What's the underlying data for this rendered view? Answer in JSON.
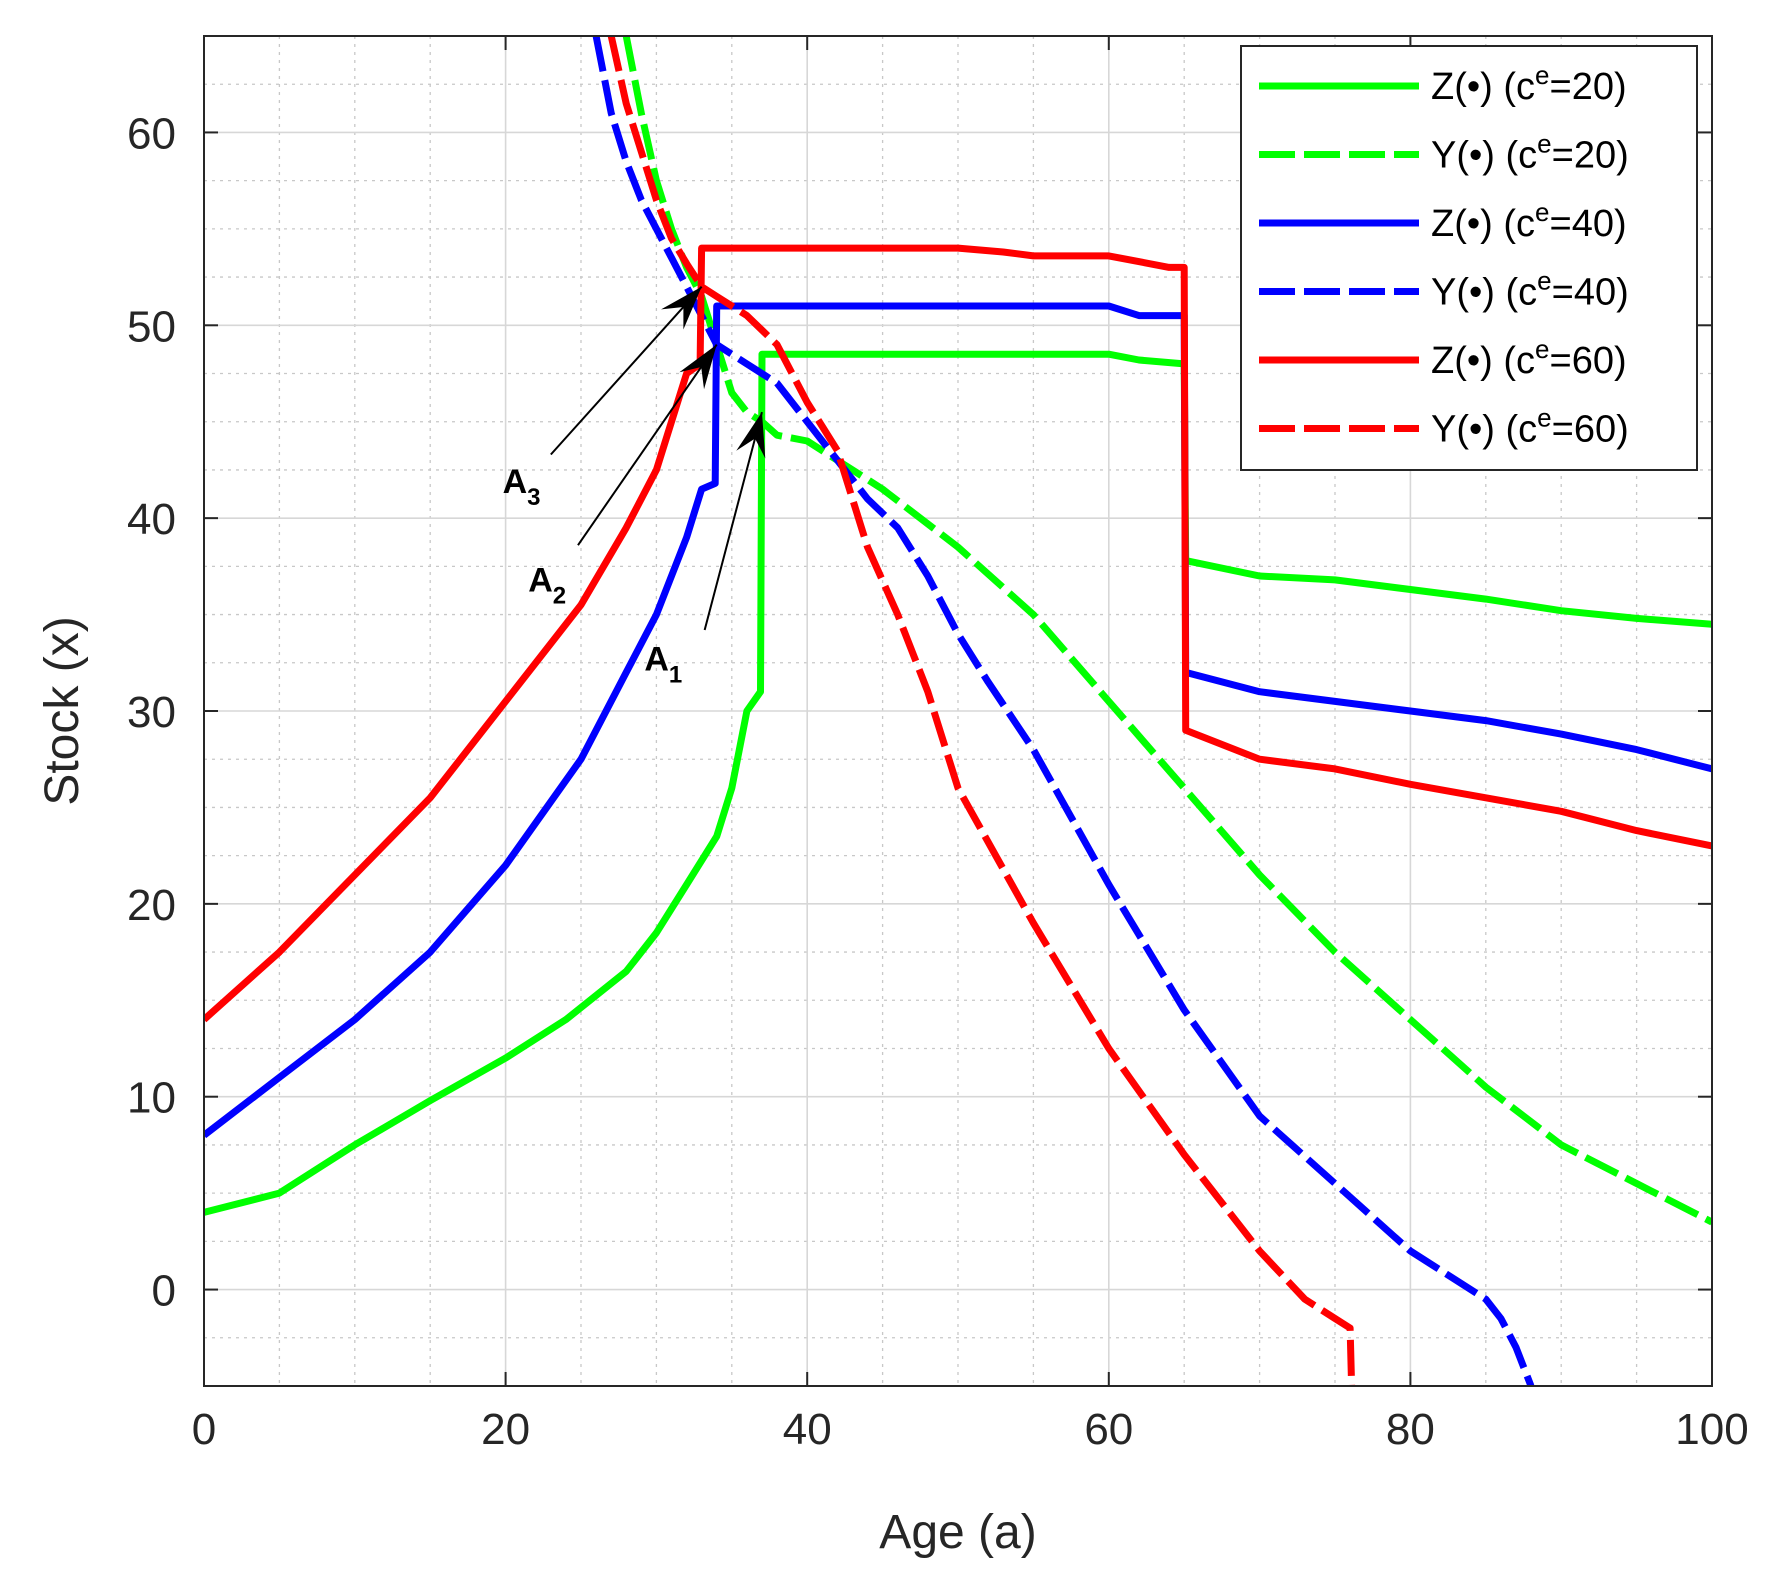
{
  "chart_data": {
    "type": "line",
    "title": "",
    "xlabel": "Age (a)",
    "ylabel": "Stock (x)",
    "xlim": [
      0,
      100
    ],
    "ylim": [
      -5,
      65
    ],
    "xticks": [
      0,
      20,
      40,
      60,
      80,
      100
    ],
    "yticks": [
      0,
      10,
      20,
      30,
      40,
      50,
      60
    ],
    "grid": true,
    "minor_grid": true,
    "legend_position": "top-right",
    "series": [
      {
        "name": "Z(•) (c^e=20)",
        "legend_main": "Z(•) (c",
        "legend_sup": "e",
        "legend_tail": "=20)",
        "color": "#00ff00",
        "style": "solid",
        "x": [
          0,
          5,
          10,
          15,
          20,
          24,
          28,
          30,
          32,
          34,
          35,
          36,
          36.9,
          37,
          38,
          40,
          45,
          50,
          55,
          60,
          62,
          65,
          65.1,
          70,
          75,
          80,
          85,
          90,
          95,
          100
        ],
        "y": [
          4,
          5,
          7.5,
          9.8,
          12,
          14,
          16.5,
          18.5,
          21,
          23.5,
          26,
          30,
          31,
          48.5,
          48.5,
          48.5,
          48.5,
          48.5,
          48.5,
          48.5,
          48.2,
          48,
          37.8,
          37,
          36.8,
          36.3,
          35.8,
          35.2,
          34.8,
          34.5
        ]
      },
      {
        "name": "Y(•) (c^e=20)",
        "legend_main": "Y(•) (c",
        "legend_sup": "e",
        "legend_tail": "=20)",
        "color": "#00ff00",
        "style": "dashed",
        "x": [
          28,
          29,
          30,
          31,
          32,
          33,
          34,
          35,
          36,
          37,
          38,
          40,
          42,
          45,
          50,
          55,
          60,
          65,
          70,
          75,
          80,
          85,
          90,
          95,
          100
        ],
        "y": [
          65,
          61,
          57.5,
          55,
          53,
          51.5,
          49,
          46.5,
          45.5,
          45,
          44.3,
          44,
          43,
          41.5,
          38.5,
          35,
          30.5,
          26,
          21.5,
          17.5,
          14,
          10.5,
          7.5,
          5.5,
          3.5
        ]
      },
      {
        "name": "Z(•) (c^e=40)",
        "legend_main": "Z(•) (c",
        "legend_sup": "e",
        "legend_tail": "=40)",
        "color": "#0000ff",
        "style": "solid",
        "x": [
          0,
          5,
          10,
          15,
          20,
          25,
          28,
          30,
          32,
          33,
          33.9,
          34,
          35,
          40,
          45,
          50,
          55,
          60,
          62,
          65,
          65.1,
          70,
          75,
          80,
          85,
          90,
          95,
          100
        ],
        "y": [
          8,
          11,
          14,
          17.5,
          22,
          27.5,
          32,
          35,
          39,
          41.5,
          41.8,
          51,
          51,
          51,
          51,
          51,
          51,
          51,
          50.5,
          50.5,
          32,
          31,
          30.5,
          30,
          29.5,
          28.8,
          28,
          27
        ]
      },
      {
        "name": "Y(•) (c^e=40)",
        "legend_main": "Y(•) (c",
        "legend_sup": "e",
        "legend_tail": "=40)",
        "color": "#0000ff",
        "style": "dashed",
        "x": [
          26,
          27,
          28,
          29,
          30,
          31,
          32,
          33,
          34,
          36,
          38,
          40,
          42,
          44,
          46,
          48,
          50,
          52,
          55,
          60,
          65,
          70,
          75,
          80,
          85,
          86,
          87,
          88
        ],
        "y": [
          65,
          61,
          58.5,
          56.5,
          55,
          53.5,
          52,
          50.5,
          49,
          48,
          47,
          45,
          43,
          41,
          39.5,
          37,
          34,
          31.5,
          28,
          21,
          14.5,
          9,
          5.5,
          2,
          -0.5,
          -1.5,
          -3,
          -5
        ]
      },
      {
        "name": "Z(•) (c^e=60)",
        "legend_main": "Z(•) (c",
        "legend_sup": "e",
        "legend_tail": "=60)",
        "color": "#ff0000",
        "style": "solid",
        "x": [
          0,
          5,
          10,
          15,
          20,
          25,
          28,
          30,
          31,
          32,
          32.9,
          33,
          35,
          40,
          45,
          50,
          53,
          55,
          60,
          64,
          65,
          65.1,
          70,
          75,
          80,
          85,
          90,
          95,
          100
        ],
        "y": [
          14,
          17.5,
          21.5,
          25.5,
          30.5,
          35.5,
          39.5,
          42.5,
          45,
          47.5,
          48,
          54,
          54,
          54,
          54,
          54,
          53.8,
          53.6,
          53.6,
          53,
          53,
          29,
          27.5,
          27,
          26.2,
          25.5,
          24.8,
          23.8,
          23
        ]
      },
      {
        "name": "Y(•) (c^e=60)",
        "legend_main": "Y(•) (c",
        "legend_sup": "e",
        "legend_tail": "=60)",
        "color": "#ff0000",
        "style": "dashed",
        "x": [
          27,
          28,
          29,
          30,
          31,
          32,
          33,
          34,
          35,
          36,
          38,
          40,
          42,
          44,
          46,
          48,
          50,
          55,
          60,
          65,
          70,
          73,
          75,
          76,
          76.1
        ],
        "y": [
          65,
          61.5,
          59,
          56.5,
          54.5,
          53.2,
          52,
          51.5,
          51,
          50.5,
          49,
          46,
          43.5,
          38.5,
          35,
          31,
          26,
          19,
          12.5,
          7,
          2,
          -0.5,
          -1.5,
          -2,
          -5
        ]
      }
    ],
    "annotations": [
      {
        "label": "A",
        "sub": "1",
        "text_x": 29.2,
        "text_y": 32.1,
        "tip_x": 37,
        "tip_y": 45.5,
        "tail_x": 33.2,
        "tail_y": 34.2
      },
      {
        "label": "A",
        "sub": "2",
        "text_x": 21.5,
        "text_y": 36.2,
        "tip_x": 34,
        "tip_y": 49,
        "tail_x": 24.8,
        "tail_y": 38.6
      },
      {
        "label": "A",
        "sub": "3",
        "text_x": 19.8,
        "text_y": 41.3,
        "tip_x": 33,
        "tip_y": 52,
        "tail_x": 23.0,
        "tail_y": 43.3
      }
    ]
  }
}
